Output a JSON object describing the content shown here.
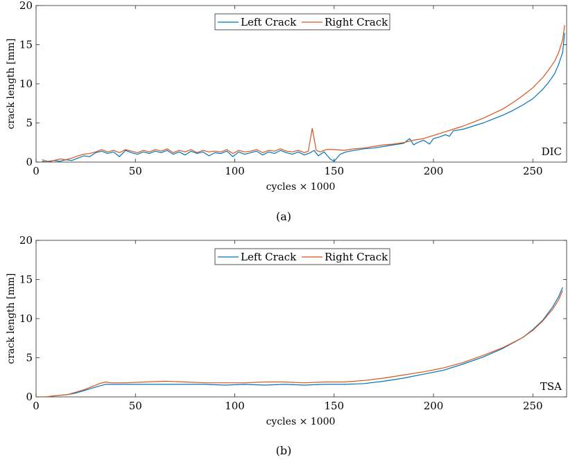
{
  "chart_data": [
    {
      "type": "line",
      "panel_label": "(a)",
      "annotation": "DIC",
      "xlabel": "cycles × 1000",
      "ylabel": "crack length [mm]",
      "xlim": [
        0,
        267
      ],
      "ylim": [
        0,
        20
      ],
      "xticks": [
        0,
        50,
        100,
        150,
        200,
        250
      ],
      "yticks": [
        0,
        5,
        10,
        15,
        20
      ],
      "grid": false,
      "legend_position": "top-center",
      "series": [
        {
          "name": "Left Crack",
          "color": "#0072BD",
          "x": [
            3,
            6,
            9,
            12,
            15,
            18,
            21,
            24,
            27,
            30,
            33,
            36,
            39,
            42,
            45,
            48,
            51,
            54,
            57,
            60,
            63,
            66,
            69,
            72,
            75,
            78,
            81,
            84,
            87,
            90,
            93,
            96,
            99,
            102,
            105,
            108,
            111,
            114,
            117,
            120,
            123,
            126,
            129,
            132,
            135,
            138,
            140,
            142,
            145,
            148,
            150,
            153,
            156,
            160,
            165,
            170,
            175,
            180,
            185,
            188,
            190,
            192,
            195,
            198,
            200,
            203,
            206,
            208,
            210,
            215,
            220,
            225,
            230,
            235,
            240,
            245,
            250,
            255,
            258,
            261,
            263,
            265,
            266
          ],
          "y": [
            0.1,
            0.0,
            0.2,
            0.1,
            0.3,
            0.2,
            0.5,
            0.8,
            0.7,
            1.2,
            1.4,
            1.1,
            1.3,
            0.7,
            1.5,
            1.2,
            1.0,
            1.3,
            1.1,
            1.4,
            1.2,
            1.5,
            1.0,
            1.3,
            0.9,
            1.4,
            1.1,
            1.3,
            0.8,
            1.2,
            1.1,
            1.4,
            0.7,
            1.3,
            1.0,
            1.2,
            1.4,
            0.9,
            1.3,
            1.1,
            1.5,
            1.2,
            1.0,
            1.3,
            0.9,
            1.2,
            1.5,
            0.8,
            1.3,
            0.4,
            0.1,
            1.0,
            1.3,
            1.5,
            1.7,
            1.8,
            2.0,
            2.2,
            2.4,
            3.0,
            2.2,
            2.5,
            2.8,
            2.3,
            3.0,
            3.2,
            3.5,
            3.3,
            4.0,
            4.2,
            4.6,
            5.0,
            5.5,
            6.0,
            6.6,
            7.3,
            8.1,
            9.3,
            10.2,
            11.3,
            12.5,
            14.0,
            16.5
          ]
        },
        {
          "name": "Right Crack",
          "color": "#D95319",
          "x": [
            3,
            6,
            9,
            12,
            15,
            18,
            21,
            24,
            27,
            30,
            33,
            36,
            39,
            42,
            45,
            48,
            51,
            54,
            57,
            60,
            63,
            66,
            69,
            72,
            75,
            78,
            81,
            84,
            87,
            90,
            93,
            96,
            99,
            102,
            105,
            108,
            111,
            114,
            117,
            120,
            123,
            126,
            129,
            132,
            135,
            137,
            139,
            141,
            143,
            146,
            150,
            155,
            160,
            165,
            170,
            175,
            180,
            185,
            190,
            195,
            200,
            205,
            210,
            215,
            220,
            225,
            230,
            235,
            240,
            245,
            250,
            255,
            258,
            261,
            263,
            265,
            266
          ],
          "y": [
            0.3,
            0.1,
            0.2,
            0.4,
            0.3,
            0.5,
            0.8,
            1.0,
            1.1,
            1.3,
            1.6,
            1.3,
            1.5,
            1.2,
            1.6,
            1.4,
            1.2,
            1.5,
            1.3,
            1.6,
            1.4,
            1.7,
            1.2,
            1.5,
            1.3,
            1.6,
            1.2,
            1.5,
            1.3,
            1.4,
            1.3,
            1.6,
            1.1,
            1.5,
            1.3,
            1.4,
            1.6,
            1.2,
            1.5,
            1.4,
            1.7,
            1.4,
            1.3,
            1.5,
            1.2,
            1.4,
            4.3,
            1.5,
            1.3,
            1.6,
            1.6,
            1.5,
            1.7,
            1.8,
            2.0,
            2.2,
            2.3,
            2.5,
            2.8,
            3.0,
            3.4,
            3.8,
            4.2,
            4.6,
            5.1,
            5.6,
            6.2,
            6.8,
            7.6,
            8.5,
            9.5,
            10.8,
            11.8,
            12.9,
            14.0,
            15.6,
            17.5
          ]
        }
      ]
    },
    {
      "type": "line",
      "panel_label": "(b)",
      "annotation": "TSA",
      "xlabel": "cycles × 1000",
      "ylabel": "crack length [mm]",
      "xlim": [
        0,
        267
      ],
      "ylim": [
        0,
        20
      ],
      "xticks": [
        0,
        50,
        100,
        150,
        200,
        250
      ],
      "yticks": [
        0,
        5,
        10,
        15,
        20
      ],
      "grid": false,
      "legend_position": "top-center",
      "series": [
        {
          "name": "Left Crack",
          "color": "#0072BD",
          "x": [
            0,
            5,
            8,
            12,
            16,
            20,
            24,
            28,
            32,
            35,
            38,
            45,
            55,
            65,
            75,
            85,
            95,
            105,
            115,
            125,
            135,
            145,
            155,
            165,
            175,
            185,
            195,
            205,
            215,
            225,
            235,
            245,
            250,
            255,
            260,
            263,
            265
          ],
          "y": [
            0.0,
            0.0,
            0.1,
            0.2,
            0.3,
            0.5,
            0.8,
            1.1,
            1.4,
            1.6,
            1.6,
            1.6,
            1.6,
            1.6,
            1.6,
            1.6,
            1.5,
            1.6,
            1.5,
            1.6,
            1.5,
            1.6,
            1.6,
            1.7,
            2.0,
            2.4,
            2.9,
            3.4,
            4.2,
            5.1,
            6.2,
            7.6,
            8.6,
            9.8,
            11.5,
            12.8,
            14.0
          ]
        },
        {
          "name": "Right Crack",
          "color": "#D95319",
          "x": [
            0,
            5,
            8,
            12,
            16,
            20,
            24,
            28,
            32,
            35,
            38,
            45,
            55,
            65,
            75,
            85,
            95,
            105,
            115,
            125,
            135,
            145,
            155,
            165,
            175,
            185,
            195,
            205,
            215,
            225,
            235,
            245,
            250,
            255,
            260,
            263,
            265
          ],
          "y": [
            0.0,
            0.0,
            0.1,
            0.2,
            0.3,
            0.6,
            0.9,
            1.3,
            1.7,
            1.9,
            1.8,
            1.8,
            1.9,
            2.0,
            1.9,
            1.8,
            1.8,
            1.8,
            1.9,
            1.9,
            1.8,
            1.9,
            1.9,
            2.1,
            2.4,
            2.8,
            3.2,
            3.7,
            4.4,
            5.3,
            6.3,
            7.6,
            8.5,
            9.7,
            11.2,
            12.4,
            13.6
          ]
        }
      ]
    }
  ]
}
